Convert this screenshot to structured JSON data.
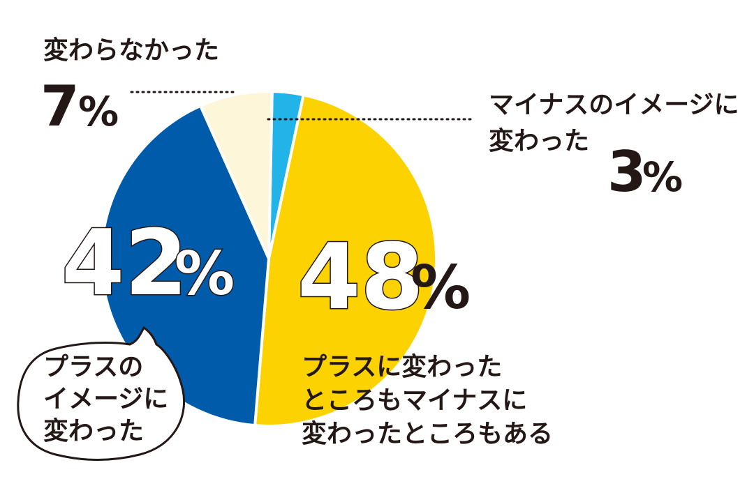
{
  "chart_data": {
    "type": "pie",
    "title": "",
    "slices": [
      {
        "name": "マイナスのイメージに変わった",
        "value": 3,
        "color": "#22b4e8"
      },
      {
        "name": "プラスに変わったところもマイナスに変わったところもある",
        "value": 48,
        "color": "#fcd300"
      },
      {
        "name": "プラスのイメージに変わった",
        "value": 42,
        "color": "#005bab"
      },
      {
        "name": "変わらなかった",
        "value": 7,
        "color": "#fdf6d8"
      }
    ],
    "unit": "%"
  },
  "labels": {
    "unchanged": {
      "text": "変わらなかった",
      "value": "7",
      "unit": "%"
    },
    "negative": {
      "line1": "マイナスのイメージに",
      "line2": "変わった",
      "value": "3",
      "unit": "%"
    },
    "positive": {
      "line1": "プラスの",
      "line2": "イメージに",
      "line3": "変わった",
      "value": "42",
      "unit": "%"
    },
    "mixed": {
      "line1": "プラスに変わった",
      "line2": "ところもマイナスに",
      "line3": "変わったところもある",
      "value": "48",
      "unit": "%"
    }
  }
}
